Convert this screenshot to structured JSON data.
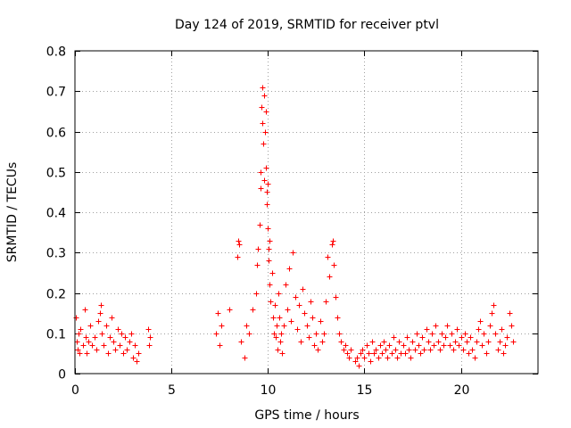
{
  "chart_data": {
    "type": "scatter",
    "title": "Day 124 of 2019, SRMTID for receiver ptvl",
    "xlabel": "GPS time / hours",
    "ylabel": "SRMTID / TECUs",
    "xlim": [
      0,
      24
    ],
    "ylim": [
      0,
      0.8
    ],
    "xticks": [
      0,
      5,
      10,
      15,
      20
    ],
    "yticks": [
      0,
      0.1,
      0.2,
      0.3,
      0.4,
      0.5,
      0.6,
      0.7,
      0.8
    ],
    "xtick_labels": [
      "0",
      "5",
      "10",
      "15",
      "20"
    ],
    "ytick_labels": [
      "0",
      "0.1",
      "0.2",
      "0.3",
      "0.4",
      "0.5",
      "0.6",
      "0.7",
      "0.8"
    ],
    "grid": true,
    "marker": "+",
    "color": "#ff0000",
    "series": [
      {
        "name": "SRMTID",
        "points": [
          [
            0.05,
            0.14
          ],
          [
            0.1,
            0.08
          ],
          [
            0.15,
            0.06
          ],
          [
            0.2,
            0.1
          ],
          [
            0.25,
            0.05
          ],
          [
            0.3,
            0.11
          ],
          [
            0.4,
            0.07
          ],
          [
            0.5,
            0.16
          ],
          [
            0.55,
            0.09
          ],
          [
            0.6,
            0.05
          ],
          [
            0.7,
            0.08
          ],
          [
            0.8,
            0.12
          ],
          [
            0.9,
            0.07
          ],
          [
            1.0,
            0.09
          ],
          [
            1.1,
            0.06
          ],
          [
            1.2,
            0.13
          ],
          [
            1.3,
            0.15
          ],
          [
            1.35,
            0.17
          ],
          [
            1.4,
            0.1
          ],
          [
            1.5,
            0.07
          ],
          [
            1.6,
            0.12
          ],
          [
            1.7,
            0.05
          ],
          [
            1.8,
            0.09
          ],
          [
            1.9,
            0.14
          ],
          [
            2.0,
            0.08
          ],
          [
            2.1,
            0.06
          ],
          [
            2.2,
            0.11
          ],
          [
            2.3,
            0.07
          ],
          [
            2.4,
            0.1
          ],
          [
            2.5,
            0.05
          ],
          [
            2.6,
            0.09
          ],
          [
            2.7,
            0.06
          ],
          [
            2.8,
            0.08
          ],
          [
            2.9,
            0.1
          ],
          [
            3.0,
            0.04
          ],
          [
            3.1,
            0.07
          ],
          [
            3.2,
            0.03
          ],
          [
            3.3,
            0.05
          ],
          [
            3.8,
            0.11
          ],
          [
            3.85,
            0.07
          ],
          [
            3.9,
            0.09
          ],
          [
            7.3,
            0.1
          ],
          [
            7.4,
            0.15
          ],
          [
            7.5,
            0.07
          ],
          [
            7.6,
            0.12
          ],
          [
            8.0,
            0.16
          ],
          [
            8.4,
            0.29
          ],
          [
            8.45,
            0.33
          ],
          [
            8.5,
            0.32
          ],
          [
            8.6,
            0.08
          ],
          [
            8.8,
            0.04
          ],
          [
            8.9,
            0.12
          ],
          [
            9.0,
            0.1
          ],
          [
            9.2,
            0.16
          ],
          [
            9.4,
            0.2
          ],
          [
            9.45,
            0.27
          ],
          [
            9.5,
            0.31
          ],
          [
            9.55,
            0.37
          ],
          [
            9.6,
            0.46
          ],
          [
            9.62,
            0.5
          ],
          [
            9.65,
            0.66
          ],
          [
            9.7,
            0.71
          ],
          [
            9.72,
            0.62
          ],
          [
            9.75,
            0.57
          ],
          [
            9.8,
            0.48
          ],
          [
            9.82,
            0.69
          ],
          [
            9.85,
            0.6
          ],
          [
            9.88,
            0.65
          ],
          [
            9.9,
            0.51
          ],
          [
            9.92,
            0.45
          ],
          [
            9.95,
            0.42
          ],
          [
            9.98,
            0.36
          ],
          [
            10.0,
            0.47
          ],
          [
            10.02,
            0.31
          ],
          [
            10.05,
            0.28
          ],
          [
            10.08,
            0.33
          ],
          [
            10.1,
            0.22
          ],
          [
            10.15,
            0.18
          ],
          [
            10.2,
            0.25
          ],
          [
            10.25,
            0.14
          ],
          [
            10.3,
            0.1
          ],
          [
            10.35,
            0.17
          ],
          [
            10.4,
            0.09
          ],
          [
            10.45,
            0.12
          ],
          [
            10.5,
            0.06
          ],
          [
            10.55,
            0.2
          ],
          [
            10.6,
            0.14
          ],
          [
            10.65,
            0.08
          ],
          [
            10.7,
            0.1
          ],
          [
            10.75,
            0.05
          ],
          [
            10.8,
            0.12
          ],
          [
            10.9,
            0.22
          ],
          [
            11.0,
            0.16
          ],
          [
            11.1,
            0.26
          ],
          [
            11.2,
            0.13
          ],
          [
            11.3,
            0.3
          ],
          [
            11.4,
            0.19
          ],
          [
            11.5,
            0.11
          ],
          [
            11.6,
            0.17
          ],
          [
            11.7,
            0.08
          ],
          [
            11.8,
            0.21
          ],
          [
            11.9,
            0.15
          ],
          [
            12.0,
            0.12
          ],
          [
            12.1,
            0.09
          ],
          [
            12.2,
            0.18
          ],
          [
            12.3,
            0.14
          ],
          [
            12.4,
            0.07
          ],
          [
            12.5,
            0.1
          ],
          [
            12.6,
            0.06
          ],
          [
            12.7,
            0.13
          ],
          [
            12.8,
            0.08
          ],
          [
            12.9,
            0.1
          ],
          [
            13.0,
            0.18
          ],
          [
            13.1,
            0.29
          ],
          [
            13.2,
            0.24
          ],
          [
            13.3,
            0.32
          ],
          [
            13.35,
            0.33
          ],
          [
            13.4,
            0.27
          ],
          [
            13.5,
            0.19
          ],
          [
            13.6,
            0.14
          ],
          [
            13.7,
            0.1
          ],
          [
            13.8,
            0.08
          ],
          [
            13.9,
            0.06
          ],
          [
            14.0,
            0.07
          ],
          [
            14.1,
            0.05
          ],
          [
            14.2,
            0.04
          ],
          [
            14.3,
            0.06
          ],
          [
            14.5,
            0.03
          ],
          [
            14.6,
            0.04
          ],
          [
            14.7,
            0.02
          ],
          [
            14.8,
            0.05
          ],
          [
            14.9,
            0.06
          ],
          [
            15.0,
            0.04
          ],
          [
            15.1,
            0.07
          ],
          [
            15.2,
            0.05
          ],
          [
            15.3,
            0.03
          ],
          [
            15.4,
            0.08
          ],
          [
            15.5,
            0.05
          ],
          [
            15.6,
            0.06
          ],
          [
            15.7,
            0.04
          ],
          [
            15.8,
            0.07
          ],
          [
            15.9,
            0.05
          ],
          [
            16.0,
            0.08
          ],
          [
            16.1,
            0.06
          ],
          [
            16.2,
            0.04
          ],
          [
            16.3,
            0.07
          ],
          [
            16.4,
            0.05
          ],
          [
            16.5,
            0.09
          ],
          [
            16.6,
            0.06
          ],
          [
            16.7,
            0.04
          ],
          [
            16.8,
            0.08
          ],
          [
            16.9,
            0.05
          ],
          [
            17.0,
            0.07
          ],
          [
            17.1,
            0.05
          ],
          [
            17.2,
            0.09
          ],
          [
            17.3,
            0.06
          ],
          [
            17.4,
            0.04
          ],
          [
            17.5,
            0.08
          ],
          [
            17.6,
            0.06
          ],
          [
            17.7,
            0.1
          ],
          [
            17.8,
            0.07
          ],
          [
            17.9,
            0.05
          ],
          [
            18.0,
            0.09
          ],
          [
            18.1,
            0.06
          ],
          [
            18.2,
            0.11
          ],
          [
            18.3,
            0.08
          ],
          [
            18.4,
            0.06
          ],
          [
            18.5,
            0.1
          ],
          [
            18.6,
            0.07
          ],
          [
            18.7,
            0.12
          ],
          [
            18.8,
            0.08
          ],
          [
            18.9,
            0.06
          ],
          [
            19.0,
            0.1
          ],
          [
            19.1,
            0.07
          ],
          [
            19.2,
            0.09
          ],
          [
            19.3,
            0.12
          ],
          [
            19.4,
            0.07
          ],
          [
            19.5,
            0.1
          ],
          [
            19.6,
            0.06
          ],
          [
            19.7,
            0.08
          ],
          [
            19.8,
            0.11
          ],
          [
            19.9,
            0.07
          ],
          [
            20.0,
            0.09
          ],
          [
            20.1,
            0.06
          ],
          [
            20.2,
            0.1
          ],
          [
            20.3,
            0.08
          ],
          [
            20.4,
            0.05
          ],
          [
            20.5,
            0.09
          ],
          [
            20.6,
            0.06
          ],
          [
            20.7,
            0.04
          ],
          [
            20.8,
            0.08
          ],
          [
            20.9,
            0.11
          ],
          [
            21.0,
            0.13
          ],
          [
            21.1,
            0.07
          ],
          [
            21.2,
            0.1
          ],
          [
            21.3,
            0.05
          ],
          [
            21.4,
            0.08
          ],
          [
            21.5,
            0.12
          ],
          [
            21.6,
            0.15
          ],
          [
            21.7,
            0.17
          ],
          [
            21.8,
            0.1
          ],
          [
            21.9,
            0.06
          ],
          [
            22.0,
            0.08
          ],
          [
            22.1,
            0.11
          ],
          [
            22.2,
            0.05
          ],
          [
            22.3,
            0.07
          ],
          [
            22.4,
            0.09
          ],
          [
            22.5,
            0.15
          ],
          [
            22.6,
            0.12
          ],
          [
            22.7,
            0.08
          ]
        ]
      }
    ]
  }
}
